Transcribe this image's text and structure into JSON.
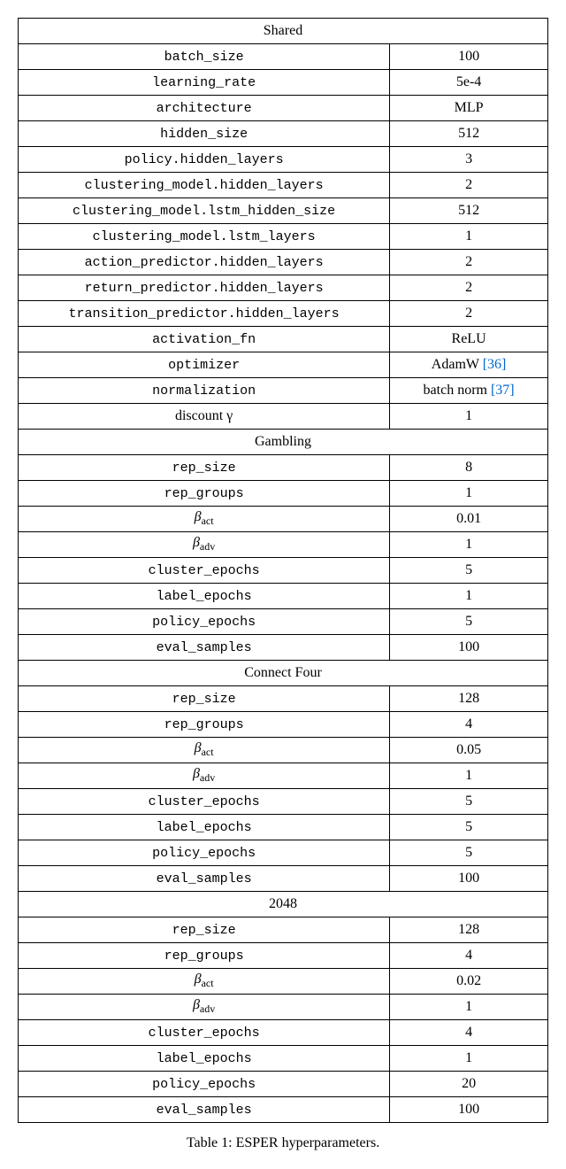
{
  "sections": [
    {
      "title": "Shared",
      "rows": [
        {
          "param": "batch_size",
          "mono": true,
          "value": "100"
        },
        {
          "param": "learning_rate",
          "mono": true,
          "value": "5e-4"
        },
        {
          "param": "architecture",
          "mono": true,
          "value": "MLP"
        },
        {
          "param": "hidden_size",
          "mono": true,
          "value": "512"
        },
        {
          "param": "policy.hidden_layers",
          "mono": true,
          "value": "3"
        },
        {
          "param": "clustering_model.hidden_layers",
          "mono": true,
          "value": "2"
        },
        {
          "param": "clustering_model.lstm_hidden_size",
          "mono": true,
          "value": "512"
        },
        {
          "param": "clustering_model.lstm_layers",
          "mono": true,
          "value": "1"
        },
        {
          "param": "action_predictor.hidden_layers",
          "mono": true,
          "value": "2"
        },
        {
          "param": "return_predictor.hidden_layers",
          "mono": true,
          "value": "2"
        },
        {
          "param": "transition_predictor.hidden_layers",
          "mono": true,
          "value": "2"
        },
        {
          "param": "activation_fn",
          "mono": true,
          "value": "ReLU"
        },
        {
          "param": "optimizer",
          "mono": true,
          "value": "AdamW ",
          "ref": "36"
        },
        {
          "param": "normalization",
          "mono": true,
          "value": "batch norm ",
          "ref": "37"
        },
        {
          "param": "discount γ",
          "mono": false,
          "value": "1"
        }
      ]
    },
    {
      "title": "Gambling",
      "rows": [
        {
          "param": "rep_size",
          "mono": true,
          "value": "8"
        },
        {
          "param": "rep_groups",
          "mono": true,
          "value": "1"
        },
        {
          "param": "β",
          "sub": "act",
          "mono": false,
          "value": "0.01"
        },
        {
          "param": "β",
          "sub": "adv",
          "mono": false,
          "value": "1"
        },
        {
          "param": "cluster_epochs",
          "mono": true,
          "value": "5"
        },
        {
          "param": "label_epochs",
          "mono": true,
          "value": "1"
        },
        {
          "param": "policy_epochs",
          "mono": true,
          "value": "5"
        },
        {
          "param": "eval_samples",
          "mono": true,
          "value": "100"
        }
      ]
    },
    {
      "title": "Connect Four",
      "rows": [
        {
          "param": "rep_size",
          "mono": true,
          "value": "128"
        },
        {
          "param": "rep_groups",
          "mono": true,
          "value": "4"
        },
        {
          "param": "β",
          "sub": "act",
          "mono": false,
          "value": "0.05"
        },
        {
          "param": "β",
          "sub": "adv",
          "mono": false,
          "value": "1"
        },
        {
          "param": "cluster_epochs",
          "mono": true,
          "value": "5"
        },
        {
          "param": "label_epochs",
          "mono": true,
          "value": "5"
        },
        {
          "param": "policy_epochs",
          "mono": true,
          "value": "5"
        },
        {
          "param": "eval_samples",
          "mono": true,
          "value": "100"
        }
      ]
    },
    {
      "title": "2048",
      "rows": [
        {
          "param": "rep_size",
          "mono": true,
          "value": "128"
        },
        {
          "param": "rep_groups",
          "mono": true,
          "value": "4"
        },
        {
          "param": "β",
          "sub": "act",
          "mono": false,
          "value": "0.02"
        },
        {
          "param": "β",
          "sub": "adv",
          "mono": false,
          "value": "1"
        },
        {
          "param": "cluster_epochs",
          "mono": true,
          "value": "4"
        },
        {
          "param": "label_epochs",
          "mono": true,
          "value": "1"
        },
        {
          "param": "policy_epochs",
          "mono": true,
          "value": "20"
        },
        {
          "param": "eval_samples",
          "mono": true,
          "value": "100"
        }
      ]
    }
  ],
  "caption": "Table 1: ESPER hyperparameters.",
  "colors": {
    "background": "#ffffff",
    "text": "#000000",
    "border": "#000000",
    "link": "#0066cc"
  }
}
